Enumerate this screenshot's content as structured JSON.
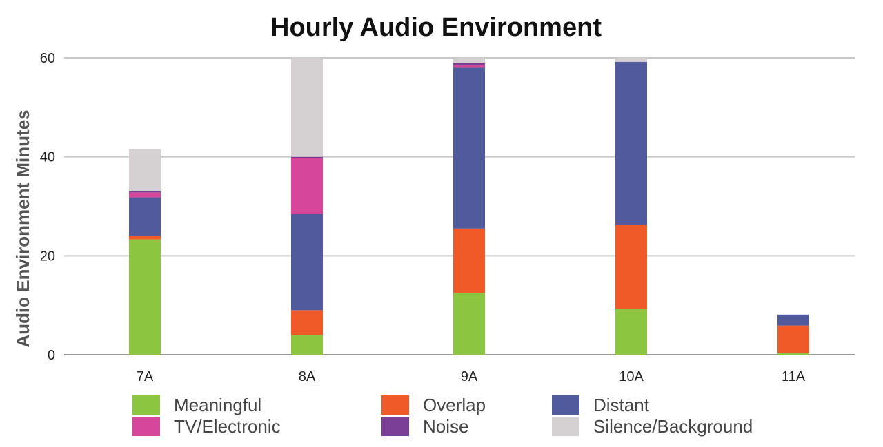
{
  "chart_data": {
    "type": "bar",
    "stacked": true,
    "title": "Hourly Audio Environment",
    "xlabel": "",
    "ylabel": "Audio Environment Minutes",
    "categories": [
      "7A",
      "8A",
      "9A",
      "10A",
      "11A"
    ],
    "ylim": [
      0,
      60
    ],
    "yticks": [
      0,
      20,
      40,
      60
    ],
    "grid": true,
    "legend_position": "bottom",
    "series": [
      {
        "name": "Meaningful",
        "color": "#8cc641",
        "values": [
          23.3,
          4.0,
          12.5,
          9.2,
          0.4
        ]
      },
      {
        "name": "Overlap",
        "color": "#f05a28",
        "values": [
          0.7,
          5.0,
          13.0,
          17.0,
          5.5
        ]
      },
      {
        "name": "Distant",
        "color": "#525a9e",
        "values": [
          7.8,
          19.5,
          32.5,
          33.0,
          2.2
        ]
      },
      {
        "name": "TV/Electronic",
        "color": "#d6469a",
        "values": [
          1.0,
          11.2,
          0.6,
          0.0,
          0.0
        ]
      },
      {
        "name": "Noise",
        "color": "#7b3f98",
        "values": [
          0.2,
          0.3,
          0.3,
          0.0,
          0.0
        ]
      },
      {
        "name": "Silence/Background",
        "color": "#d5d1d3",
        "values": [
          8.5,
          20.0,
          1.1,
          0.8,
          0.0
        ]
      }
    ]
  }
}
